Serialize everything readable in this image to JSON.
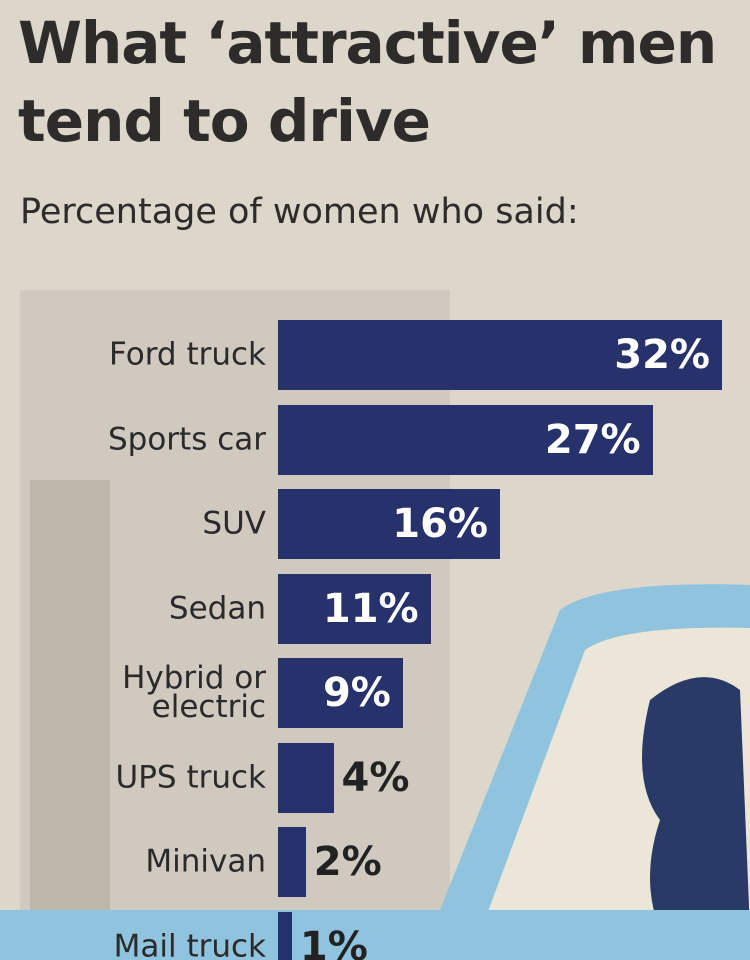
{
  "chart_data": {
    "type": "bar",
    "orientation": "horizontal",
    "title": "What ‘attractive’ men tend to drive",
    "subtitle": "Percentage of women who said:",
    "categories": [
      "Ford truck",
      "Sports car",
      "SUV",
      "Sedan",
      "Hybrid or electric",
      "UPS truck",
      "Minivan",
      "Mail truck"
    ],
    "values": [
      32,
      27,
      16,
      11,
      9,
      4,
      2,
      1
    ],
    "value_labels": [
      "32%",
      "27%",
      "16%",
      "11%",
      "9%",
      "4%",
      "2%",
      "1%"
    ],
    "color": "#27316c"
  }
}
